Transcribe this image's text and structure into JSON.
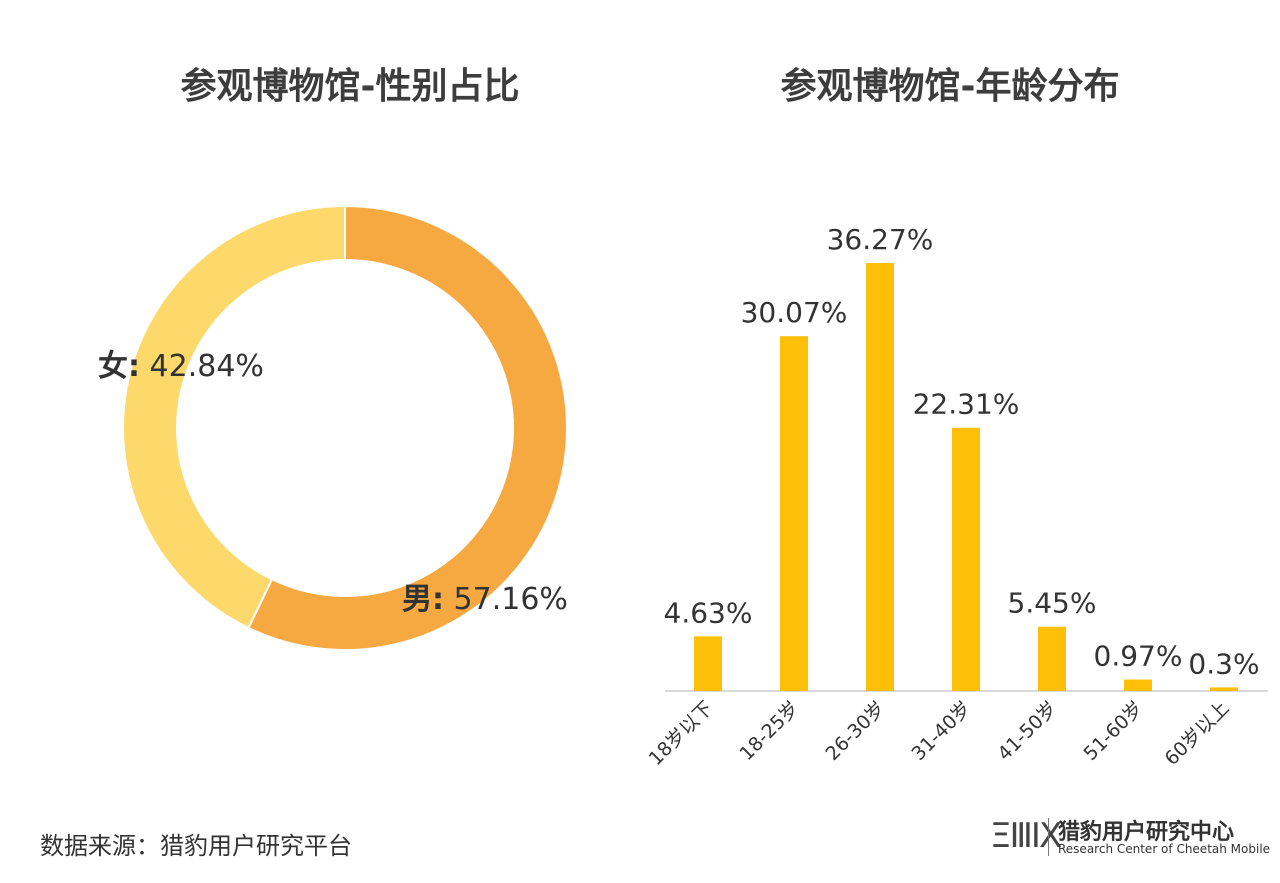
{
  "colors": {
    "male": "#F7A941",
    "female": "#FCD96A",
    "bar": "#FDBF08",
    "axis": "#D9D9D9",
    "text": "#333333"
  },
  "source_label": "数据来源：猎豹用户研究平台",
  "logo": {
    "cn": "猎豹用户研究中心",
    "en": "Research Center of Cheetah Mobile",
    "mark": "ΞⅢΙΧ"
  },
  "chart_data": [
    {
      "type": "pie",
      "title": "参观博物馆-性别占比",
      "donut": true,
      "slices": [
        {
          "label": "男",
          "value": 57.16,
          "display": "男: 57.16%",
          "color": "#F7A941"
        },
        {
          "label": "女",
          "value": 42.84,
          "display": "女: 42.84%",
          "color": "#FCD96A"
        }
      ]
    },
    {
      "type": "bar",
      "title": "参观博物馆-年龄分布",
      "categories": [
        "18岁以下",
        "18-25岁",
        "26-30岁",
        "31-40岁",
        "41-50岁",
        "51-60岁",
        "60岁以上"
      ],
      "values": [
        4.63,
        30.07,
        36.27,
        22.31,
        5.45,
        0.97,
        0.3
      ],
      "value_labels": [
        "4.63%",
        "30.07%",
        "36.27%",
        "22.31%",
        "5.45%",
        "0.97%",
        "0.3%"
      ],
      "xlabel": "",
      "ylabel": "",
      "grid": false,
      "color": "#FDBF08"
    }
  ]
}
